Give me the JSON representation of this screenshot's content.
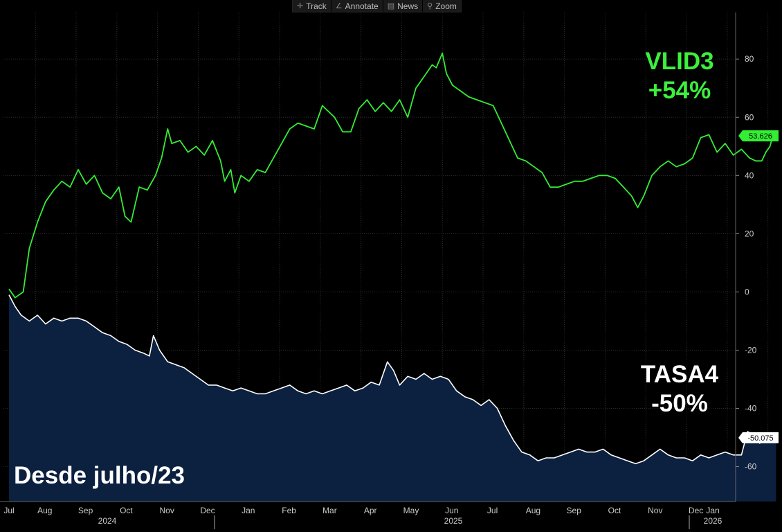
{
  "toolbar": {
    "items": [
      {
        "label": "Track",
        "icon": "crosshair-icon",
        "glyph": "✛"
      },
      {
        "label": "Annotate",
        "icon": "pencil-icon",
        "glyph": "∠"
      },
      {
        "label": "News",
        "icon": "news-icon",
        "glyph": "▤"
      },
      {
        "label": "Zoom",
        "icon": "magnifier-icon",
        "glyph": "⚲"
      }
    ]
  },
  "annotations": {
    "series1_name": "VLID3",
    "series1_change": "+54%",
    "series2_name": "TASA4",
    "series2_change": "-50%",
    "period_note": "Desde julho/23"
  },
  "colors": {
    "background": "#000000",
    "grid": "#2e2e2e",
    "green_line": "#33ee33",
    "white_line": "#ffffff",
    "area_fill": "#0c2040",
    "axis_text": "#cccccc"
  },
  "chart_data": {
    "type": "line",
    "title": "",
    "ylim": [
      -72,
      96
    ],
    "y_ticks": [
      80,
      60,
      40,
      20,
      0,
      -20,
      -40,
      -60
    ],
    "x_months": [
      "Jul",
      "Aug",
      "Sep",
      "Oct",
      "Nov",
      "Dec",
      "Jan",
      "Feb",
      "Mar",
      "Apr",
      "May",
      "Jun",
      "Jul",
      "Aug",
      "Sep",
      "Oct",
      "Nov",
      "Dec",
      "Jan"
    ],
    "x_years": [
      "2024",
      "2025",
      "2026"
    ],
    "last_values": {
      "VLID3": "53.626",
      "TASA4": "-50.075"
    },
    "series": [
      {
        "name": "VLID3",
        "style": "line",
        "values": [
          [
            0.0,
            1
          ],
          [
            0.15,
            -2
          ],
          [
            0.35,
            0
          ],
          [
            0.5,
            15
          ],
          [
            0.7,
            24
          ],
          [
            0.9,
            31
          ],
          [
            1.1,
            35
          ],
          [
            1.3,
            38
          ],
          [
            1.5,
            36
          ],
          [
            1.7,
            42
          ],
          [
            1.9,
            37
          ],
          [
            2.1,
            40
          ],
          [
            2.3,
            34
          ],
          [
            2.5,
            32
          ],
          [
            2.7,
            36
          ],
          [
            2.85,
            26
          ],
          [
            3.0,
            24
          ],
          [
            3.2,
            36
          ],
          [
            3.4,
            35
          ],
          [
            3.6,
            40
          ],
          [
            3.75,
            46
          ],
          [
            3.9,
            56
          ],
          [
            4.0,
            51
          ],
          [
            4.2,
            52
          ],
          [
            4.4,
            48
          ],
          [
            4.6,
            50
          ],
          [
            4.8,
            47
          ],
          [
            5.0,
            52
          ],
          [
            5.2,
            45
          ],
          [
            5.3,
            38
          ],
          [
            5.45,
            42
          ],
          [
            5.55,
            34
          ],
          [
            5.7,
            40
          ],
          [
            5.9,
            38
          ],
          [
            6.1,
            42
          ],
          [
            6.3,
            41
          ],
          [
            6.5,
            46
          ],
          [
            6.7,
            51
          ],
          [
            6.9,
            56
          ],
          [
            7.1,
            58
          ],
          [
            7.3,
            57
          ],
          [
            7.5,
            56
          ],
          [
            7.7,
            64
          ],
          [
            7.85,
            62
          ],
          [
            8.0,
            60
          ],
          [
            8.2,
            55
          ],
          [
            8.4,
            55
          ],
          [
            8.6,
            63
          ],
          [
            8.8,
            66
          ],
          [
            9.0,
            62
          ],
          [
            9.2,
            65
          ],
          [
            9.4,
            62
          ],
          [
            9.6,
            66
          ],
          [
            9.8,
            60
          ],
          [
            10.0,
            70
          ],
          [
            10.2,
            74
          ],
          [
            10.4,
            78
          ],
          [
            10.5,
            77
          ],
          [
            10.65,
            82
          ],
          [
            10.75,
            75
          ],
          [
            10.9,
            71
          ],
          [
            11.1,
            69
          ],
          [
            11.3,
            67
          ],
          [
            11.5,
            66
          ],
          [
            11.7,
            65
          ],
          [
            11.9,
            64
          ],
          [
            12.1,
            58
          ],
          [
            12.3,
            52
          ],
          [
            12.5,
            46
          ],
          [
            12.7,
            45
          ],
          [
            12.9,
            43
          ],
          [
            13.1,
            41
          ],
          [
            13.3,
            36
          ],
          [
            13.5,
            36
          ],
          [
            13.7,
            37
          ],
          [
            13.9,
            38
          ],
          [
            14.1,
            38
          ],
          [
            14.3,
            39
          ],
          [
            14.5,
            40
          ],
          [
            14.7,
            40
          ],
          [
            14.9,
            39
          ],
          [
            15.1,
            36
          ],
          [
            15.3,
            33
          ],
          [
            15.45,
            29
          ],
          [
            15.6,
            33
          ],
          [
            15.8,
            40
          ],
          [
            16.0,
            43
          ],
          [
            16.2,
            45
          ],
          [
            16.4,
            43
          ],
          [
            16.6,
            44
          ],
          [
            16.8,
            46
          ],
          [
            17.0,
            53
          ],
          [
            17.2,
            54
          ],
          [
            17.4,
            48
          ],
          [
            17.6,
            51
          ],
          [
            17.8,
            47
          ],
          [
            18.0,
            49
          ],
          [
            18.2,
            46
          ],
          [
            18.35,
            45
          ],
          [
            18.5,
            45
          ],
          [
            18.6,
            48
          ],
          [
            18.7,
            50
          ],
          [
            18.8,
            55
          ],
          [
            18.85,
            53.6
          ]
        ]
      },
      {
        "name": "TASA4",
        "style": "area",
        "values": [
          [
            0.0,
            -1
          ],
          [
            0.15,
            -5
          ],
          [
            0.3,
            -8
          ],
          [
            0.5,
            -10
          ],
          [
            0.7,
            -8
          ],
          [
            0.9,
            -11
          ],
          [
            1.1,
            -9
          ],
          [
            1.3,
            -10
          ],
          [
            1.5,
            -9
          ],
          [
            1.7,
            -9
          ],
          [
            1.9,
            -10
          ],
          [
            2.1,
            -12
          ],
          [
            2.3,
            -14
          ],
          [
            2.5,
            -15
          ],
          [
            2.7,
            -17
          ],
          [
            2.9,
            -18
          ],
          [
            3.1,
            -20
          ],
          [
            3.3,
            -21
          ],
          [
            3.45,
            -22
          ],
          [
            3.55,
            -15
          ],
          [
            3.7,
            -20
          ],
          [
            3.9,
            -24
          ],
          [
            4.1,
            -25
          ],
          [
            4.3,
            -26
          ],
          [
            4.5,
            -28
          ],
          [
            4.7,
            -30
          ],
          [
            4.9,
            -32
          ],
          [
            5.1,
            -32
          ],
          [
            5.3,
            -33
          ],
          [
            5.5,
            -34
          ],
          [
            5.7,
            -33
          ],
          [
            5.9,
            -34
          ],
          [
            6.1,
            -35
          ],
          [
            6.3,
            -35
          ],
          [
            6.5,
            -34
          ],
          [
            6.7,
            -33
          ],
          [
            6.9,
            -32
          ],
          [
            7.1,
            -34
          ],
          [
            7.3,
            -35
          ],
          [
            7.5,
            -34
          ],
          [
            7.7,
            -35
          ],
          [
            7.9,
            -34
          ],
          [
            8.1,
            -33
          ],
          [
            8.3,
            -32
          ],
          [
            8.5,
            -34
          ],
          [
            8.7,
            -33
          ],
          [
            8.9,
            -31
          ],
          [
            9.1,
            -32
          ],
          [
            9.3,
            -24
          ],
          [
            9.45,
            -27
          ],
          [
            9.6,
            -32
          ],
          [
            9.8,
            -29
          ],
          [
            10.0,
            -30
          ],
          [
            10.2,
            -28
          ],
          [
            10.4,
            -30
          ],
          [
            10.6,
            -29
          ],
          [
            10.8,
            -30
          ],
          [
            11.0,
            -34
          ],
          [
            11.2,
            -36
          ],
          [
            11.4,
            -37
          ],
          [
            11.6,
            -39
          ],
          [
            11.8,
            -37
          ],
          [
            12.0,
            -40
          ],
          [
            12.2,
            -46
          ],
          [
            12.4,
            -51
          ],
          [
            12.6,
            -55
          ],
          [
            12.8,
            -56
          ],
          [
            13.0,
            -58
          ],
          [
            13.2,
            -57
          ],
          [
            13.4,
            -57
          ],
          [
            13.6,
            -56
          ],
          [
            13.8,
            -55
          ],
          [
            14.0,
            -54
          ],
          [
            14.2,
            -55
          ],
          [
            14.4,
            -55
          ],
          [
            14.6,
            -54
          ],
          [
            14.8,
            -56
          ],
          [
            15.0,
            -57
          ],
          [
            15.2,
            -58
          ],
          [
            15.4,
            -59
          ],
          [
            15.6,
            -58
          ],
          [
            15.8,
            -56
          ],
          [
            16.0,
            -54
          ],
          [
            16.2,
            -56
          ],
          [
            16.4,
            -57
          ],
          [
            16.6,
            -57
          ],
          [
            16.8,
            -58
          ],
          [
            17.0,
            -56
          ],
          [
            17.2,
            -57
          ],
          [
            17.4,
            -56
          ],
          [
            17.6,
            -55
          ],
          [
            17.8,
            -56
          ],
          [
            18.0,
            -56
          ],
          [
            18.15,
            -48
          ],
          [
            18.3,
            -49
          ],
          [
            18.45,
            -52
          ],
          [
            18.6,
            -49
          ],
          [
            18.75,
            -51
          ],
          [
            18.85,
            -50
          ]
        ]
      }
    ]
  }
}
